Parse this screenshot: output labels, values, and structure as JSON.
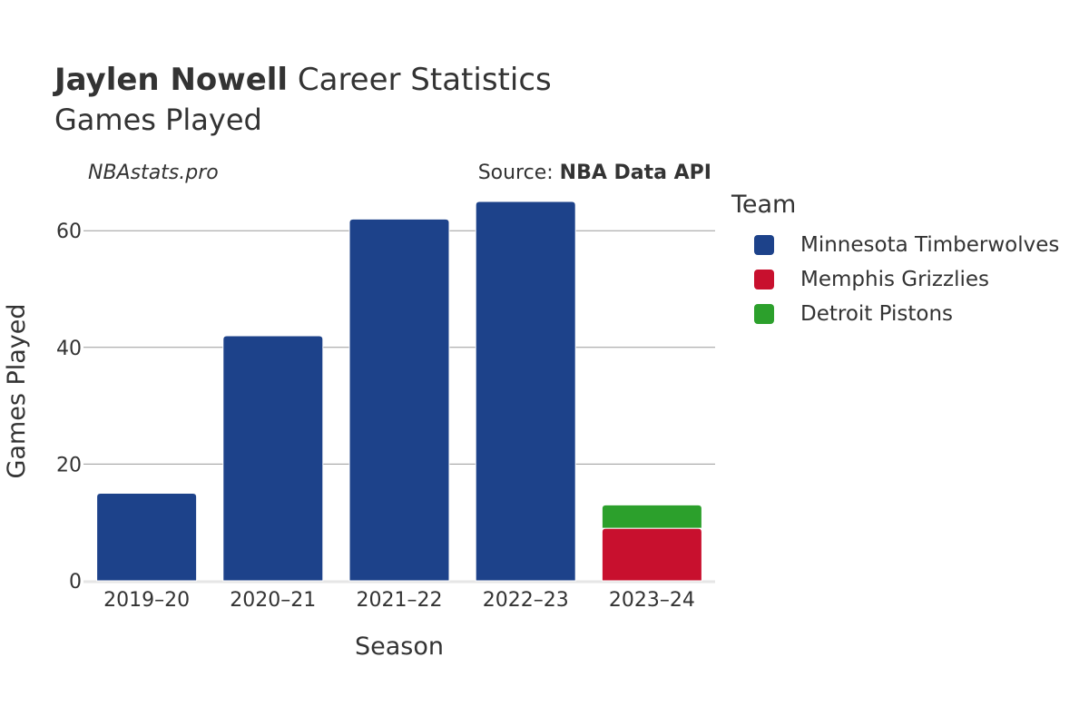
{
  "header": {
    "player": "Jaylen Nowell",
    "title_rest": "Career Statistics",
    "subtitle": "Games Played",
    "site": "NBAstats.pro",
    "source_prefix": "Source: ",
    "source_name": "NBA Data API"
  },
  "legend": {
    "title": "Team",
    "items": [
      {
        "label": "Minnesota Timberwolves",
        "color": "#1d428a"
      },
      {
        "label": "Memphis Grizzlies",
        "color": "#c8102e"
      },
      {
        "label": "Detroit Pistons",
        "color": "#2ca02c"
      }
    ]
  },
  "chart_data": {
    "type": "bar",
    "stacked": true,
    "xlabel": "Season",
    "ylabel": "Games Played",
    "categories": [
      "2019–20",
      "2020–21",
      "2021–22",
      "2022–23",
      "2023–24"
    ],
    "ylim": [
      0,
      70
    ],
    "yticks": [
      0,
      20,
      40,
      60
    ],
    "grid": true,
    "legend_position": "right",
    "series": [
      {
        "name": "Minnesota Timberwolves",
        "color": "#1d428a",
        "values": [
          15,
          42,
          62,
          65,
          0
        ]
      },
      {
        "name": "Memphis Grizzlies",
        "color": "#c8102e",
        "values": [
          0,
          0,
          0,
          0,
          9
        ]
      },
      {
        "name": "Detroit Pistons",
        "color": "#2ca02c",
        "values": [
          0,
          0,
          0,
          0,
          4
        ]
      }
    ]
  }
}
